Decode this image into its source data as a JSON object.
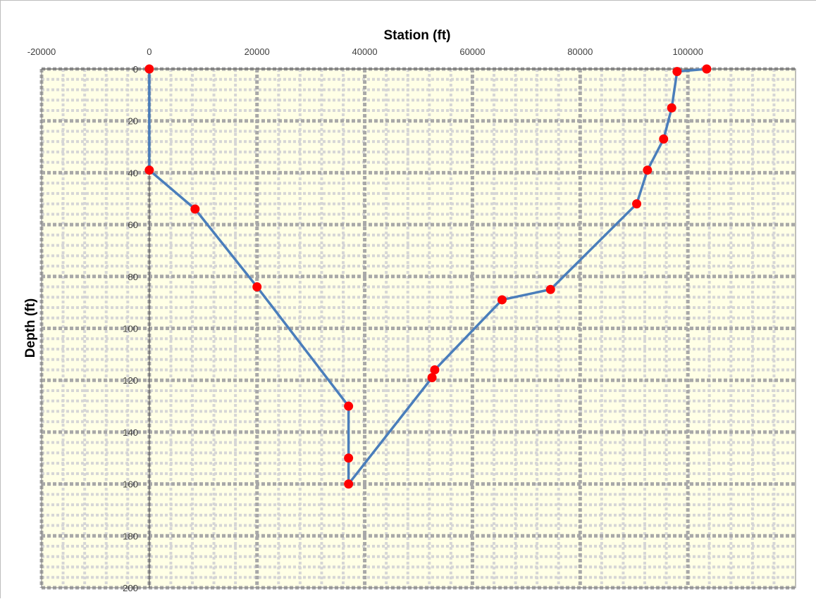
{
  "chart_data": {
    "type": "line",
    "title": "",
    "xlabel": "Station (ft)",
    "ylabel": "Depth (ft)",
    "x_axis_position": "top",
    "y_axis_inverted": true,
    "xlim": [
      -20000,
      120000
    ],
    "ylim": [
      0,
      200
    ],
    "x_ticks": [
      "-20000",
      "0",
      "20000",
      "40000",
      "60000",
      "80000",
      "100000"
    ],
    "y_ticks": [
      "0",
      "20",
      "40",
      "60",
      "80",
      "100",
      "120",
      "140",
      "160",
      "180",
      "200"
    ],
    "grid": true,
    "legend": "none",
    "colors": {
      "plot_background": "#ffffe6",
      "major_grid": "#a8a8a8",
      "minor_grid": "#d6d6d6",
      "line": "#4a7ebb",
      "marker": "#ff0000",
      "axis_text": "#404040"
    },
    "series": [
      {
        "x": [
          0,
          0,
          8500,
          20000,
          37000,
          37000,
          37000,
          52500,
          53000,
          65500,
          74500,
          90500,
          92500,
          95500,
          97000,
          98000,
          103500
        ],
        "y": [
          0,
          39,
          54,
          84,
          130,
          150,
          160,
          119,
          116,
          89,
          85,
          52,
          39,
          27,
          15,
          1,
          0
        ]
      }
    ]
  }
}
